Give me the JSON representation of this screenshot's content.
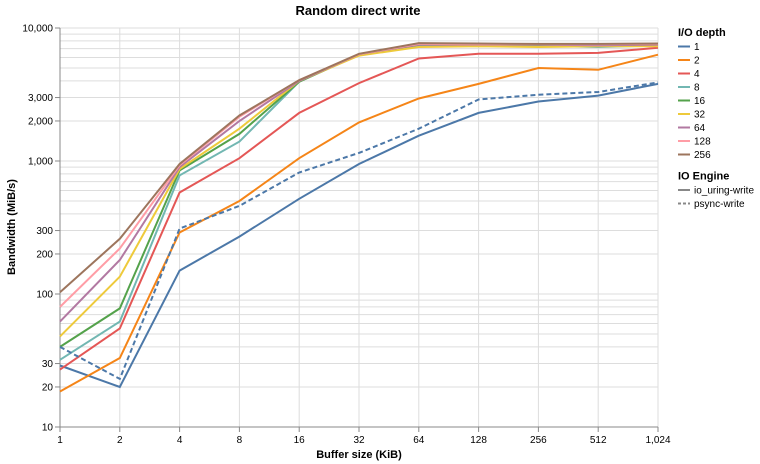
{
  "chart_data": {
    "type": "line",
    "title": "Random direct write",
    "xlabel": "Buffer size (KiB)",
    "ylabel": "Bandwidth (MiB/s)",
    "x_scale": "log2",
    "y_scale": "log10",
    "x": [
      1,
      2,
      4,
      8,
      16,
      32,
      64,
      128,
      256,
      512,
      1024
    ],
    "x_tick_labels": [
      "1",
      "2",
      "4",
      "8",
      "16",
      "32",
      "64",
      "128",
      "256",
      "512",
      "1,024"
    ],
    "y_ticks": [
      10,
      20,
      30,
      100,
      200,
      300,
      1000,
      2000,
      3000,
      10000
    ],
    "y_tick_labels": [
      "10",
      "20",
      "30",
      "100",
      "200",
      "300",
      "1,000",
      "2,000",
      "3,000",
      "10,000"
    ],
    "ylim": [
      10,
      10000
    ],
    "xlim": [
      1,
      1024
    ],
    "grid": true,
    "legend_placement": "right",
    "legends": [
      {
        "title": "I/O depth",
        "entries": [
          {
            "label": "1",
            "color": "#4c78a8"
          },
          {
            "label": "2",
            "color": "#f58518"
          },
          {
            "label": "4",
            "color": "#e45756"
          },
          {
            "label": "8",
            "color": "#72b7b2"
          },
          {
            "label": "16",
            "color": "#54a24b"
          },
          {
            "label": "32",
            "color": "#eeca3b"
          },
          {
            "label": "64",
            "color": "#b279a2"
          },
          {
            "label": "128",
            "color": "#ff9da6"
          },
          {
            "label": "256",
            "color": "#9d755d"
          }
        ]
      },
      {
        "title": "IO Engine",
        "entries": [
          {
            "label": "io_uring-write",
            "dash": "solid",
            "color": "#888888"
          },
          {
            "label": "psync-write",
            "dash": "dashed",
            "color": "#888888"
          }
        ]
      }
    ],
    "series": [
      {
        "depth": "1",
        "engine": "io_uring-write",
        "color": "#4c78a8",
        "dash": "solid",
        "values": [
          29,
          20,
          150,
          270,
          520,
          950,
          1550,
          2300,
          2800,
          3100,
          3800
        ]
      },
      {
        "depth": "2",
        "engine": "io_uring-write",
        "color": "#f58518",
        "dash": "solid",
        "values": [
          18.5,
          33,
          290,
          500,
          1050,
          1950,
          2950,
          3800,
          5000,
          4850,
          6300
        ]
      },
      {
        "depth": "4",
        "engine": "io_uring-write",
        "color": "#e45756",
        "dash": "solid",
        "values": [
          27,
          55,
          580,
          1050,
          2300,
          3850,
          5900,
          6400,
          6400,
          6500,
          7100
        ]
      },
      {
        "depth": "8",
        "engine": "io_uring-write",
        "color": "#72b7b2",
        "dash": "solid",
        "values": [
          32,
          62,
          780,
          1400,
          3950,
          6350,
          7400,
          7400,
          7350,
          7200,
          7400
        ]
      },
      {
        "depth": "16",
        "engine": "io_uring-write",
        "color": "#54a24b",
        "dash": "solid",
        "values": [
          40,
          78,
          850,
          1600,
          3950,
          6300,
          7500,
          7500,
          7350,
          7350,
          7500
        ]
      },
      {
        "depth": "32",
        "engine": "io_uring-write",
        "color": "#eeca3b",
        "dash": "solid",
        "values": [
          48,
          135,
          870,
          1750,
          4000,
          6200,
          7200,
          7300,
          7200,
          7300,
          7300
        ]
      },
      {
        "depth": "64",
        "engine": "io_uring-write",
        "color": "#b279a2",
        "dash": "solid",
        "values": [
          62,
          180,
          900,
          2000,
          4000,
          6350,
          7500,
          7500,
          7500,
          7400,
          7500
        ]
      },
      {
        "depth": "128",
        "engine": "io_uring-write",
        "color": "#ff9da6",
        "dash": "solid",
        "values": [
          80,
          220,
          930,
          2150,
          4050,
          6350,
          7600,
          7550,
          7550,
          7550,
          7600
        ]
      },
      {
        "depth": "256",
        "engine": "io_uring-write",
        "color": "#9d755d",
        "dash": "solid",
        "values": [
          103,
          260,
          950,
          2200,
          4050,
          6400,
          7700,
          7650,
          7600,
          7600,
          7650
        ]
      },
      {
        "depth": "1",
        "engine": "psync-write",
        "color": "#4c78a8",
        "dash": "dashed",
        "values": [
          40,
          23,
          310,
          460,
          820,
          1150,
          1750,
          2900,
          3150,
          3300,
          3900
        ]
      }
    ]
  }
}
